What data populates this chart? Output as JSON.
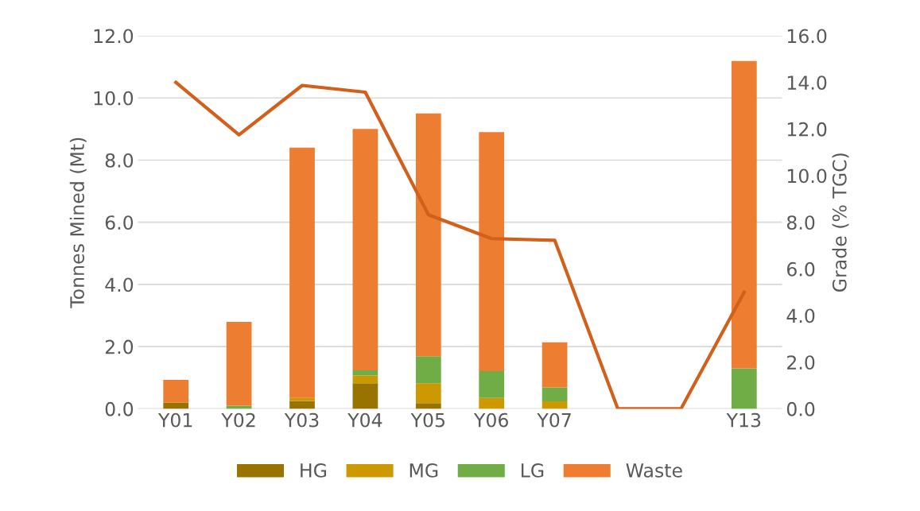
{
  "chart_data": {
    "type": "bar",
    "stacked": true,
    "categories": [
      "Y01",
      "Y02",
      "Y03",
      "Y04",
      "Y05",
      "Y06",
      "Y07",
      null,
      null,
      "Y13"
    ],
    "series": [
      {
        "name": "HG",
        "color": "#997300",
        "values": [
          0.2,
          0,
          0.25,
          0.82,
          0.18,
          0,
          0,
          null,
          0,
          0
        ]
      },
      {
        "name": "MG",
        "color": "#cc9a00",
        "values": [
          0,
          0,
          0.1,
          0.25,
          0.64,
          0.35,
          0.24,
          null,
          0,
          0
        ]
      },
      {
        "name": "LG",
        "color": "#70ad47",
        "values": [
          0,
          0.1,
          0,
          0.17,
          0.87,
          0.86,
          0.45,
          null,
          0,
          1.3
        ]
      },
      {
        "name": "Waste",
        "color": "#ed7d31",
        "values": [
          0.73,
          2.7,
          8.05,
          7.76,
          7.81,
          7.69,
          1.45,
          null,
          0,
          9.89
        ]
      },
      {
        "type": "line",
        "axis": "y2",
        "color": "#d2601a",
        "values": [
          14.0,
          11.75,
          13.87,
          13.58,
          8.32,
          7.3,
          7.23,
          0,
          0,
          5.0
        ]
      }
    ],
    "ylabel": "Tonnes Mined (Mt)",
    "y2label": "Grade (% TGC)",
    "ylim": [
      0,
      12
    ],
    "yticks": [
      {
        "value": 0,
        "label": "0.0"
      },
      {
        "value": 2,
        "label": "2.0"
      },
      {
        "value": 4,
        "label": "4.0"
      },
      {
        "value": 6,
        "label": "6.0"
      },
      {
        "value": 8,
        "label": "8.0"
      },
      {
        "value": 10,
        "label": "10.0"
      },
      {
        "value": 12,
        "label": "12.0"
      }
    ],
    "y2lim": [
      0,
      16
    ],
    "y2ticks": [
      {
        "value": 0,
        "label": "0.0"
      },
      {
        "value": 2,
        "label": "2.0"
      },
      {
        "value": 4,
        "label": "4.0"
      },
      {
        "value": 6,
        "label": "6.0"
      },
      {
        "value": 8,
        "label": "8.0"
      },
      {
        "value": 10,
        "label": "10.0"
      },
      {
        "value": 12,
        "label": "12.0"
      },
      {
        "value": 14,
        "label": "14.0"
      },
      {
        "value": 16,
        "label": "16.0"
      }
    ],
    "grid": "y",
    "legend": "bottom"
  }
}
